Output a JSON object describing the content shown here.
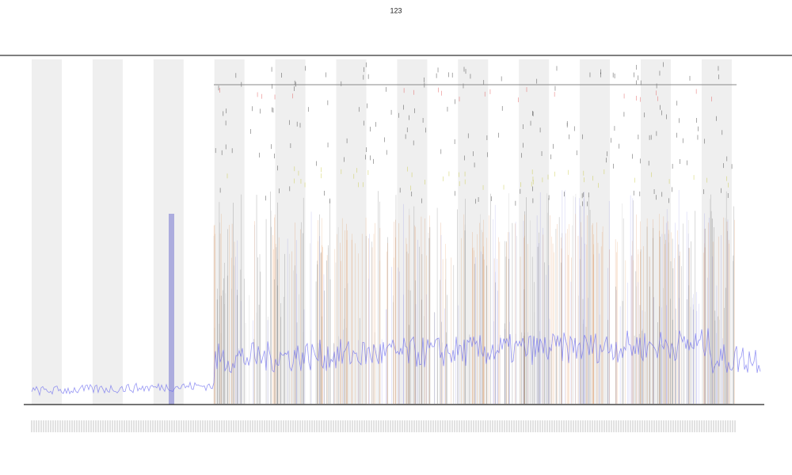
{
  "chart_data": {
    "type": "line",
    "title": "123"
  }
}
